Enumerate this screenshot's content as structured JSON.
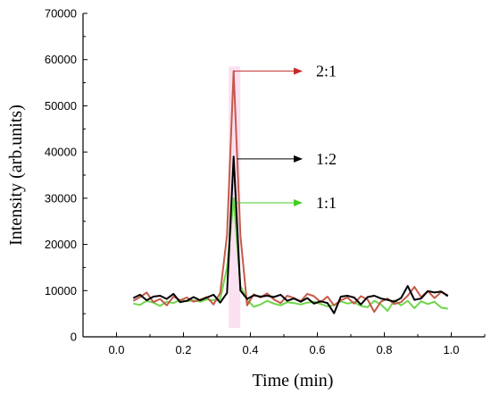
{
  "chart_data": {
    "type": "line",
    "title": "",
    "xlabel": "Time (min)",
    "ylabel": "Intensity (arb.units)",
    "xlim": [
      -0.1,
      1.1
    ],
    "ylim": [
      0,
      70000
    ],
    "xticks": [
      0.0,
      0.2,
      0.4,
      0.6,
      0.8,
      1.0
    ],
    "xtick_labels": [
      "0.0",
      "0.2",
      "0.4",
      "0.6",
      "0.8",
      "1.0"
    ],
    "yticks": [
      0,
      10000,
      20000,
      30000,
      40000,
      50000,
      60000,
      70000
    ],
    "ytick_labels": [
      "0",
      "10000",
      "20000",
      "30000",
      "40000",
      "50000",
      "60000",
      "70000"
    ],
    "grid": false,
    "x": [
      0.05,
      0.07,
      0.09,
      0.11,
      0.13,
      0.15,
      0.17,
      0.19,
      0.21,
      0.23,
      0.25,
      0.27,
      0.29,
      0.31,
      0.33,
      0.35,
      0.37,
      0.39,
      0.41,
      0.43,
      0.45,
      0.47,
      0.49,
      0.51,
      0.53,
      0.55,
      0.57,
      0.59,
      0.61,
      0.63,
      0.65,
      0.67,
      0.69,
      0.71,
      0.73,
      0.75,
      0.77,
      0.79,
      0.81,
      0.83,
      0.85,
      0.87,
      0.89,
      0.91,
      0.93,
      0.95,
      0.97,
      0.99
    ],
    "series": [
      {
        "name": "",
        "color": "#6ed64a",
        "values": [
          7200,
          6900,
          7800,
          7400,
          6700,
          7600,
          7300,
          8000,
          7700,
          7900,
          7600,
          8100,
          7900,
          8200,
          15000,
          30000,
          11000,
          8000,
          6500,
          7000,
          7800,
          7200,
          6800,
          7500,
          7300,
          7000,
          7400,
          7600,
          7100,
          6600,
          6900,
          7700,
          7200,
          7500,
          6700,
          6400,
          7800,
          7000,
          5600,
          7900,
          6800,
          7800,
          6200,
          7700,
          7100,
          7600,
          6300,
          6100
        ]
      },
      {
        "name": "",
        "color": "#c45a4a",
        "values": [
          7800,
          8600,
          9600,
          7500,
          8200,
          6800,
          8700,
          7900,
          8500,
          7600,
          8000,
          8600,
          7000,
          9500,
          22000,
          57500,
          22000,
          6800,
          9200,
          8500,
          9400,
          8100,
          7300,
          8900,
          8400,
          7700,
          9300,
          8800,
          7500,
          8700,
          6800,
          7900,
          8500,
          7200,
          8800,
          8100,
          5400,
          7600,
          8300,
          7100,
          7500,
          8900,
          10800,
          8600,
          9900,
          8400,
          9700,
          9000
        ]
      },
      {
        "name": "",
        "color": "#000000",
        "values": [
          8400,
          9100,
          7900,
          8700,
          8900,
          8200,
          9300,
          7500,
          7800,
          8600,
          7900,
          8500,
          9100,
          7400,
          9500,
          39000,
          10000,
          8200,
          9000,
          8700,
          8900,
          8600,
          9100,
          7800,
          8300,
          7600,
          8400,
          7200,
          7700,
          7300,
          5100,
          8700,
          8900,
          8500,
          7000,
          8600,
          8900,
          8300,
          8000,
          7600,
          8400,
          11000,
          8000,
          8300,
          9900,
          9600,
          9800,
          8800
        ]
      }
    ],
    "annotations": [
      {
        "text": "2:1",
        "x": 0.35,
        "y": 57500,
        "arrow_color": "#c42a2a"
      },
      {
        "text": "1:2",
        "x": 0.36,
        "y": 38500,
        "arrow_color": "#000000"
      },
      {
        "text": "1:1",
        "x": 0.36,
        "y": 29000,
        "arrow_color": "#44cc22"
      }
    ]
  }
}
